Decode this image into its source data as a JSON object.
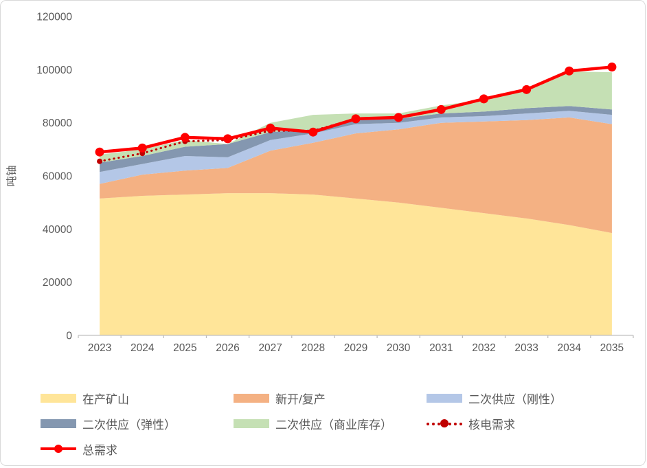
{
  "chart": {
    "y_axis_title": "吨铀",
    "axis_text_color": "#595959",
    "axis_line_color": "#bfbfbf"
  },
  "chart_data": {
    "type": "area",
    "stacked": true,
    "title": "",
    "xlabel": "",
    "ylabel": "吨铀",
    "ylim": [
      0,
      120000
    ],
    "y_tick_step": 20000,
    "y_tick_labels": [
      "0",
      "20000",
      "40000",
      "60000",
      "80000",
      "100000",
      "120000"
    ],
    "grid": false,
    "legend_position": "bottom",
    "categories": [
      "2023",
      "2024",
      "2025",
      "2026",
      "2027",
      "2028",
      "2029",
      "2030",
      "2031",
      "2032",
      "2033",
      "2034",
      "2035"
    ],
    "series": [
      {
        "id": "producing-mines",
        "name": "在产矿山",
        "type": "area",
        "color": "#ffe599",
        "values": [
          51500,
          52500,
          53000,
          53500,
          53500,
          53000,
          51500,
          50000,
          48000,
          46000,
          44000,
          41500,
          38500
        ]
      },
      {
        "id": "new-restart",
        "name": "新开/复产",
        "type": "area",
        "color": "#f4b183",
        "values": [
          5500,
          8000,
          9000,
          9500,
          16000,
          19500,
          24500,
          27500,
          32000,
          34500,
          37000,
          40500,
          41000
        ]
      },
      {
        "id": "secondary-rigid",
        "name": "二次供应（刚性）",
        "type": "area",
        "color": "#b4c7e7",
        "values": [
          4500,
          4000,
          5500,
          4000,
          4000,
          3500,
          3500,
          2500,
          2000,
          2000,
          2500,
          2500,
          3500
        ]
      },
      {
        "id": "secondary-elastic",
        "name": "二次供应（弹性）",
        "type": "area",
        "color": "#8497b0",
        "values": [
          3500,
          3000,
          3500,
          5000,
          3000,
          1500,
          1500,
          1500,
          1500,
          1700,
          2000,
          1800,
          2000
        ]
      },
      {
        "id": "secondary-inventory",
        "name": "二次供应（商业库存）",
        "type": "area",
        "color": "#c5e0b4",
        "values": [
          3000,
          2500,
          2500,
          0,
          3500,
          5500,
          2500,
          2000,
          3000,
          4500,
          6500,
          13000,
          14000
        ]
      },
      {
        "id": "nuclear-demand",
        "name": "核电需求",
        "type": "line",
        "style": "dotted",
        "color": "#c00000",
        "values": [
          65500,
          68500,
          73000,
          73500,
          77000,
          77000,
          81500,
          82000,
          85000,
          89000,
          92500,
          99500,
          101000
        ]
      },
      {
        "id": "total-demand",
        "name": "总需求",
        "type": "line",
        "style": "solid",
        "color": "#ff0000",
        "values": [
          69000,
          70500,
          74500,
          74000,
          78000,
          76500,
          81500,
          82000,
          85000,
          89000,
          92500,
          99500,
          101000
        ]
      }
    ]
  }
}
